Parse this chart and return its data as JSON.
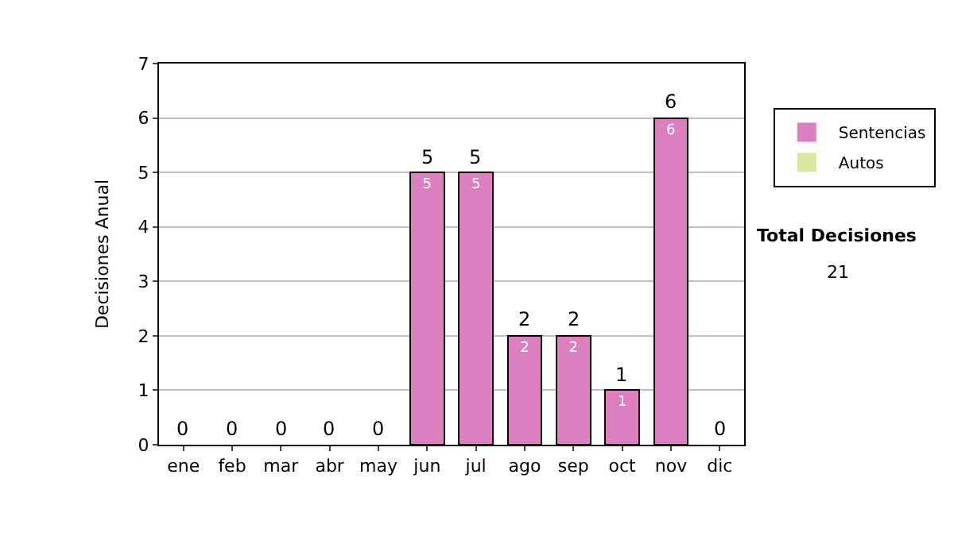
{
  "chart_data": {
    "type": "bar",
    "stacked": true,
    "ylabel": "Decisiones Anual",
    "categories": [
      "ene",
      "feb",
      "mar",
      "abr",
      "may",
      "jun",
      "jul",
      "ago",
      "sep",
      "oct",
      "nov",
      "dic"
    ],
    "series": [
      {
        "name": "Sentencias",
        "color": "#dd80c0",
        "values": [
          0,
          0,
          0,
          0,
          0,
          5,
          5,
          2,
          2,
          1,
          6,
          0
        ],
        "value_labels": [
          null,
          null,
          null,
          null,
          null,
          "5",
          "5",
          "2",
          "2",
          "1",
          "6",
          null
        ]
      },
      {
        "name": "Autos",
        "color": "#d8e8a0",
        "values": [
          0,
          0,
          0,
          0,
          0,
          0,
          0,
          0,
          0,
          0,
          0,
          0
        ]
      }
    ],
    "totals": [
      "0",
      "0",
      "0",
      "0",
      "0",
      "5",
      "5",
      "2",
      "2",
      "1",
      "6",
      "0"
    ],
    "ylim": [
      0,
      7
    ],
    "yticks": [
      0,
      1,
      2,
      3,
      4,
      5,
      6,
      7
    ],
    "grid": "y",
    "legend": "right",
    "annotations": [
      "Total Decisiones",
      "21"
    ]
  }
}
